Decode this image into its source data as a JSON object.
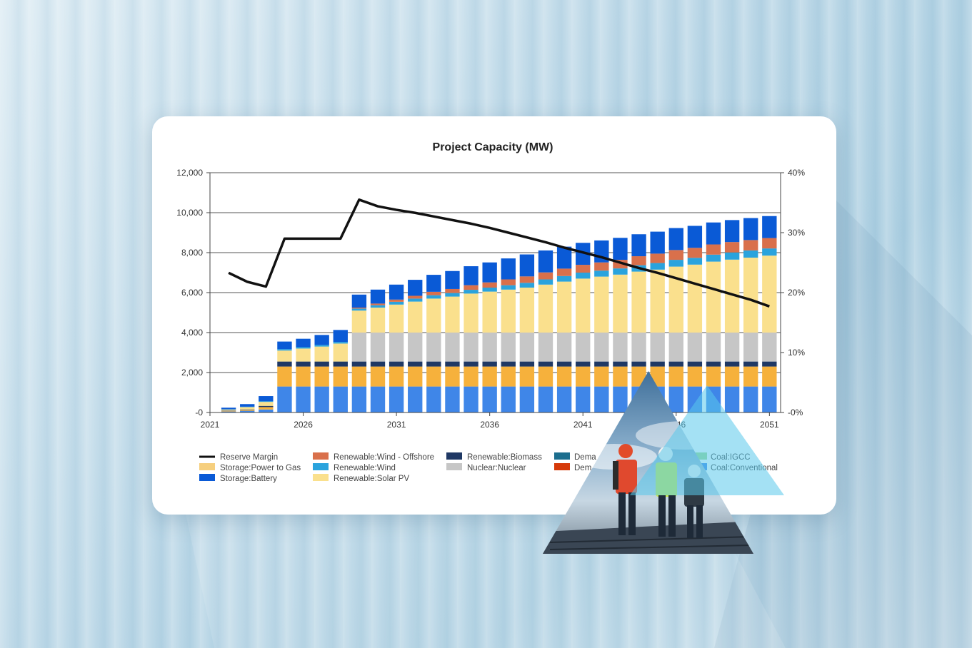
{
  "chart_data": {
    "type": "bar",
    "title": "Project Capacity (MW)",
    "x": [
      2022,
      2023,
      2024,
      2025,
      2026,
      2027,
      2028,
      2029,
      2030,
      2031,
      2032,
      2033,
      2034,
      2035,
      2036,
      2037,
      2038,
      2039,
      2040,
      2041,
      2042,
      2043,
      2044,
      2045,
      2046,
      2047,
      2048,
      2049,
      2050,
      2051
    ],
    "x_ticks": [
      "2021",
      "2026",
      "2031",
      "2036",
      "2041",
      "2046",
      "2051"
    ],
    "y_ticks": [
      "-0",
      "2,000",
      "4,000",
      "6,000",
      "8,000",
      "10,000",
      "12,000"
    ],
    "y2_ticks": [
      "-0%",
      "10%",
      "20%",
      "30%",
      "40%"
    ],
    "ylim": [
      0,
      12000
    ],
    "y2lim": [
      0,
      40
    ],
    "series": [
      {
        "name": "Coal:Conventional",
        "color": "#3f86e8",
        "values": [
          50,
          80,
          150,
          1300,
          1300,
          1300,
          1300,
          1300,
          1300,
          1300,
          1300,
          1300,
          1300,
          1300,
          1300,
          1300,
          1300,
          1300,
          1300,
          1300,
          1300,
          1300,
          1300,
          1300,
          1300,
          1300,
          1300,
          1300,
          1300,
          1300
        ]
      },
      {
        "name": "Storage:Power to Gas",
        "color": "#f6b13c",
        "values": [
          30,
          40,
          120,
          1000,
          1000,
          1000,
          1000,
          1000,
          1000,
          1000,
          1000,
          1000,
          1000,
          1000,
          1000,
          1000,
          1000,
          1000,
          1000,
          1000,
          1000,
          1000,
          1000,
          1000,
          1000,
          1000,
          1000,
          1000,
          1000,
          1000
        ]
      },
      {
        "name": "Renewable:Biomass",
        "color": "#1f3864",
        "values": [
          20,
          30,
          60,
          250,
          250,
          250,
          250,
          250,
          250,
          250,
          250,
          250,
          250,
          250,
          250,
          250,
          250,
          250,
          250,
          250,
          250,
          250,
          250,
          250,
          250,
          250,
          250,
          250,
          250,
          250
        ]
      },
      {
        "name": "Nuclear:Nuclear",
        "color": "#c6c6c6",
        "values": [
          0,
          0,
          0,
          0,
          0,
          0,
          0,
          1450,
          1450,
          1450,
          1450,
          1450,
          1450,
          1450,
          1450,
          1450,
          1450,
          1450,
          1450,
          1450,
          1450,
          1450,
          1450,
          1450,
          1450,
          1450,
          1450,
          1450,
          1450,
          1450
        ]
      },
      {
        "name": "Renewable:Solar PV",
        "color": "#fae08d",
        "values": [
          50,
          120,
          200,
          550,
          650,
          750,
          900,
          1100,
          1250,
          1400,
          1550,
          1700,
          1800,
          1950,
          2050,
          2150,
          2250,
          2400,
          2550,
          2700,
          2800,
          2900,
          3050,
          3150,
          3300,
          3400,
          3550,
          3650,
          3750,
          3850
        ]
      },
      {
        "name": "Renewable:Wind",
        "color": "#2aa3dd",
        "values": [
          10,
          20,
          30,
          70,
          70,
          80,
          80,
          100,
          120,
          140,
          150,
          170,
          180,
          190,
          200,
          220,
          240,
          260,
          280,
          300,
          300,
          310,
          320,
          330,
          340,
          340,
          350,
          360,
          360,
          360
        ]
      },
      {
        "name": "Renewable:Wind - Offshore",
        "color": "#d9704b",
        "values": [
          0,
          0,
          0,
          0,
          0,
          0,
          0,
          50,
          80,
          110,
          140,
          170,
          200,
          230,
          260,
          290,
          320,
          350,
          370,
          390,
          410,
          430,
          450,
          470,
          490,
          500,
          510,
          520,
          520,
          520
        ]
      },
      {
        "name": "Storage:Battery",
        "color": "#0a5ad6",
        "values": [
          80,
          130,
          260,
          380,
          420,
          500,
          600,
          650,
          700,
          750,
          800,
          850,
          900,
          950,
          1000,
          1050,
          1100,
          1100,
          1100,
          1100,
          1100,
          1100,
          1100,
          1100,
          1100,
          1100,
          1100,
          1100,
          1100,
          1100
        ]
      }
    ],
    "line_series": {
      "name": "Reserve Margin",
      "color": "#111111",
      "axis": "right",
      "x": [
        2022,
        2023,
        2024,
        2025,
        2026,
        2027,
        2028,
        2029,
        2030,
        2031,
        2032,
        2033,
        2034,
        2035,
        2036,
        2037,
        2038,
        2039,
        2040,
        2041,
        2042,
        2043,
        2044,
        2045,
        2046,
        2047,
        2048,
        2049,
        2050,
        2051
      ],
      "values": [
        23.3,
        21.8,
        21.0,
        29.0,
        29.0,
        29.0,
        29.0,
        35.5,
        34.4,
        33.8,
        33.3,
        32.7,
        32.1,
        31.5,
        30.8,
        30.0,
        29.2,
        28.4,
        27.5,
        26.7,
        25.9,
        25.0,
        24.1,
        23.3,
        22.4,
        21.5,
        20.6,
        19.7,
        18.8,
        17.7
      ]
    },
    "legend": [
      {
        "label": "Reserve Margin",
        "color": "#111111",
        "kind": "line"
      },
      {
        "label": "Storage:Power to Gas",
        "color": "#f6cf7e",
        "kind": "box"
      },
      {
        "label": "Storage:Battery",
        "color": "#0a5ad6",
        "kind": "box"
      },
      {
        "label": "Renewable:Wind - Offshore",
        "color": "#d9704b",
        "kind": "box"
      },
      {
        "label": "Renewable:Wind",
        "color": "#2aa3dd",
        "kind": "box"
      },
      {
        "label": "Renewable:Solar PV",
        "color": "#fae08d",
        "kind": "box"
      },
      {
        "label": "Renewable:Biomass",
        "color": "#1f3864",
        "kind": "box"
      },
      {
        "label": "Nuclear:Nuclear",
        "color": "#c6c6c6",
        "kind": "box"
      },
      {
        "label": "Demand",
        "color": "#1c6e8e",
        "kind": "box"
      },
      {
        "label": "Demand",
        "color": "#d63a0a",
        "kind": "box"
      },
      {
        "label": "Coal:IGCC",
        "color": "#9fd98f",
        "kind": "box"
      },
      {
        "label": "Coal:Conventional",
        "color": "#3f86e8",
        "kind": "box"
      }
    ],
    "legend_placement": "bottom",
    "grid": true
  },
  "legend_text": {
    "l0": "Reserve Margin",
    "l1": "Storage:Power to Gas",
    "l2": "Storage:Battery",
    "l3": "Renewable:Wind - Offshore",
    "l4": "Renewable:Wind",
    "l5": "Renewable:Solar PV",
    "l6": "Renewable:Biomass",
    "l7": "Nuclear:Nuclear",
    "l8": "Dema",
    "l9": "Dem",
    "l10": "Coal:IGCC",
    "l11": "Coal:Conventional"
  },
  "photo": {
    "description_icon": "workers-photo-icon"
  }
}
